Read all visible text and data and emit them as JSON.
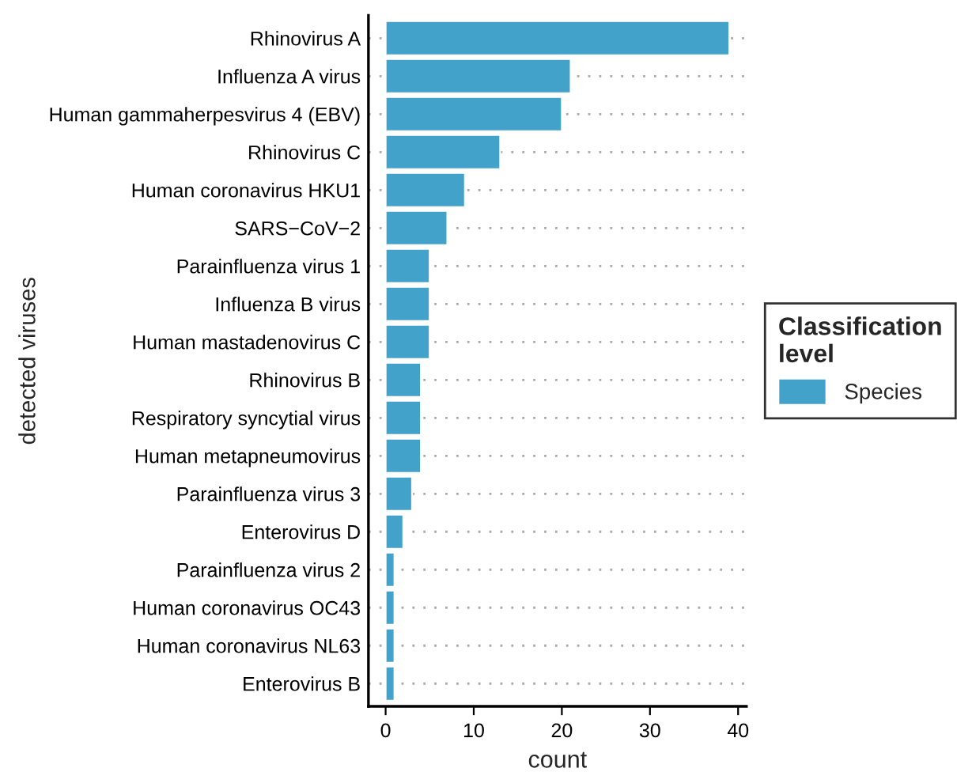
{
  "chart_data": {
    "type": "bar",
    "orientation": "horizontal",
    "xlabel": "count",
    "ylabel": "detected viruses",
    "legend_title": "Classification level",
    "categories": [
      "Rhinovirus A",
      "Influenza A virus",
      "Human gammaherpesvirus 4 (EBV)",
      "Rhinovirus C",
      "Human coronavirus HKU1",
      "SARS−CoV−2",
      "Parainfluenza virus 1",
      "Influenza B virus",
      "Human mastadenovirus C",
      "Rhinovirus B",
      "Respiratory syncytial virus",
      "Human metapneumovirus",
      "Parainfluenza virus 3",
      "Enterovirus D",
      "Parainfluenza virus 2",
      "Human coronavirus OC43",
      "Human coronavirus NL63",
      "Enterovirus B"
    ],
    "series": [
      {
        "name": "Species",
        "color": "#43a2ca",
        "values": [
          39,
          21,
          20,
          13,
          9,
          7,
          5,
          5,
          5,
          4,
          4,
          4,
          3,
          2,
          1,
          1,
          1,
          1
        ]
      }
    ],
    "xlim": [
      -1.95,
      40.95
    ],
    "xticks": [
      0,
      10,
      20,
      30,
      40
    ],
    "grid": "y",
    "legend": "right"
  }
}
